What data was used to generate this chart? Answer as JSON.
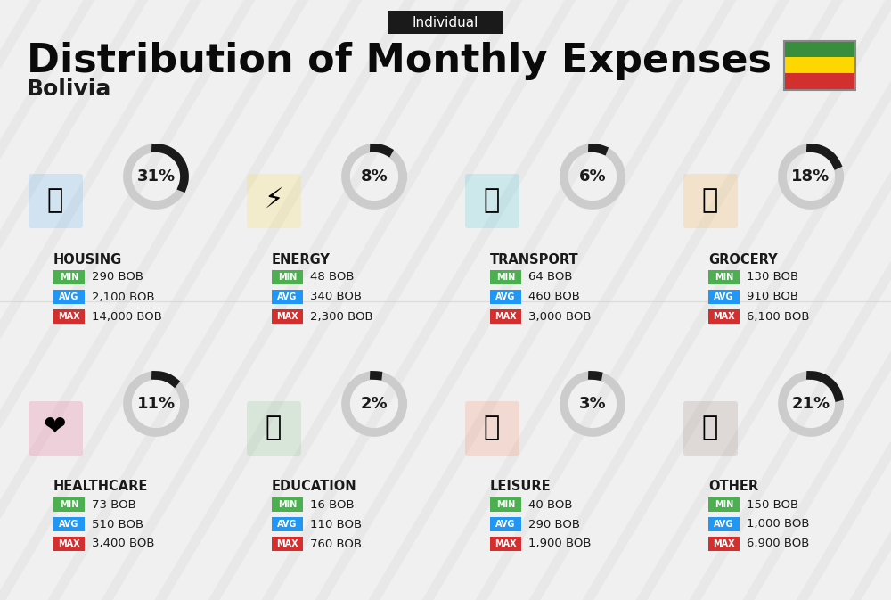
{
  "title": "Distribution of Monthly Expenses",
  "subtitle": "Bolivia",
  "tag": "Individual",
  "bg_color": "#f0f0f0",
  "categories": [
    {
      "name": "HOUSING",
      "percent": 31,
      "min_val": "290 BOB",
      "avg_val": "2,100 BOB",
      "max_val": "14,000 BOB",
      "icon_color": "#2196F3",
      "row": 0,
      "col": 0
    },
    {
      "name": "ENERGY",
      "percent": 8,
      "min_val": "48 BOB",
      "avg_val": "340 BOB",
      "max_val": "2,300 BOB",
      "icon_color": "#FFD700",
      "row": 0,
      "col": 1
    },
    {
      "name": "TRANSPORT",
      "percent": 6,
      "min_val": "64 BOB",
      "avg_val": "460 BOB",
      "max_val": "3,000 BOB",
      "icon_color": "#00BCD4",
      "row": 0,
      "col": 2
    },
    {
      "name": "GROCERY",
      "percent": 18,
      "min_val": "130 BOB",
      "avg_val": "910 BOB",
      "max_val": "6,100 BOB",
      "icon_color": "#FF9800",
      "row": 0,
      "col": 3
    },
    {
      "name": "HEALTHCARE",
      "percent": 11,
      "min_val": "73 BOB",
      "avg_val": "510 BOB",
      "max_val": "3,400 BOB",
      "icon_color": "#E91E63",
      "row": 1,
      "col": 0
    },
    {
      "name": "EDUCATION",
      "percent": 2,
      "min_val": "16 BOB",
      "avg_val": "110 BOB",
      "max_val": "760 BOB",
      "icon_color": "#4CAF50",
      "row": 1,
      "col": 1
    },
    {
      "name": "LEISURE",
      "percent": 3,
      "min_val": "40 BOB",
      "avg_val": "290 BOB",
      "max_val": "1,900 BOB",
      "icon_color": "#FF5722",
      "row": 1,
      "col": 2
    },
    {
      "name": "OTHER",
      "percent": 21,
      "min_val": "150 BOB",
      "avg_val": "1,000 BOB",
      "max_val": "6,900 BOB",
      "icon_color": "#795548",
      "row": 1,
      "col": 3
    }
  ],
  "min_color": "#4CAF50",
  "avg_color": "#2196F3",
  "max_color": "#D32F2F",
  "label_color": "#ffffff",
  "value_color": "#1a1a1a",
  "category_name_color": "#1a1a1a",
  "percent_color": "#1a1a1a",
  "donut_active_color": "#1a1a1a",
  "donut_inactive_color": "#cccccc",
  "flag_colors": [
    "#D32F2F",
    "#FFD700",
    "#388E3C"
  ]
}
